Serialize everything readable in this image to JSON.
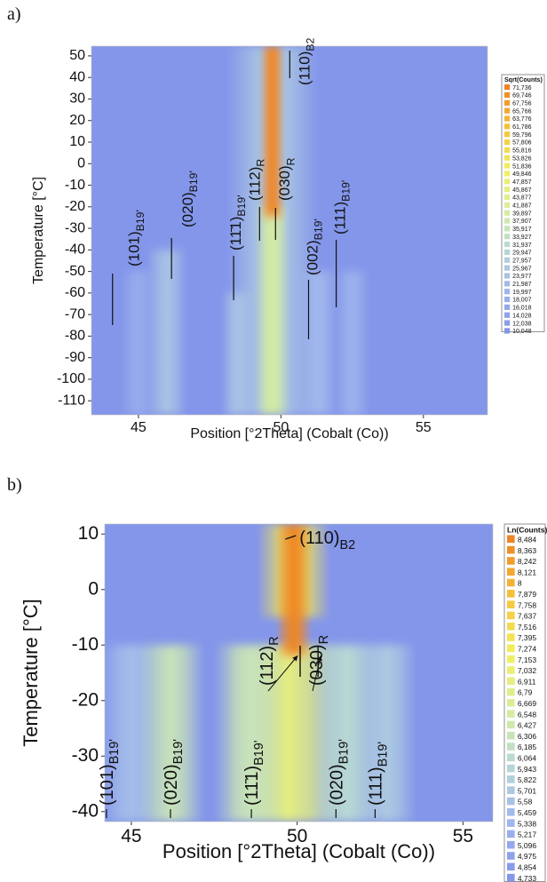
{
  "chart_data": [
    {
      "type": "heatmap",
      "panel_label": "a)",
      "xlabel": "Position [°2Theta] (Cobalt (Co))",
      "ylabel": "Temperature [°C]",
      "xlim": [
        43.35,
        57.25
      ],
      "ylim": [
        -116.5,
        54.5
      ],
      "xticks": [
        45,
        50,
        55
      ],
      "yticks": [
        50,
        40,
        30,
        20,
        10,
        0,
        -10,
        -20,
        -30,
        -40,
        -50,
        -60,
        -70,
        -80,
        -90,
        -100,
        -110
      ],
      "colormap": [
        "#8496ea",
        "#9fb6ee",
        "#b7d8d6",
        "#d8ee9c",
        "#f2ef5e",
        "#f5c23a",
        "#ee8424"
      ],
      "colorbar": {
        "title": "Sqrt(Counts)",
        "ticks": [
          {
            "value": 71.736,
            "label": "71,736"
          },
          {
            "value": 69.746,
            "label": "69,746"
          },
          {
            "value": 67.756,
            "label": "67,756"
          },
          {
            "value": 65.766,
            "label": "65,766"
          },
          {
            "value": 63.776,
            "label": "63,776"
          },
          {
            "value": 61.786,
            "label": "61,786"
          },
          {
            "value": 59.796,
            "label": "59,796"
          },
          {
            "value": 57.806,
            "label": "57,806"
          },
          {
            "value": 55.816,
            "label": "55,816"
          },
          {
            "value": 53.826,
            "label": "53,826"
          },
          {
            "value": 51.836,
            "label": "51,836"
          },
          {
            "value": 49.846,
            "label": "49,846"
          },
          {
            "value": 47.857,
            "label": "47,857"
          },
          {
            "value": 45.867,
            "label": "45,867"
          },
          {
            "value": 43.877,
            "label": "43,877"
          },
          {
            "value": 41.887,
            "label": "41,887"
          },
          {
            "value": 39.897,
            "label": "39,897"
          },
          {
            "value": 37.907,
            "label": "37,907"
          },
          {
            "value": 35.917,
            "label": "35,917"
          },
          {
            "value": 33.927,
            "label": "33,927"
          },
          {
            "value": 31.937,
            "label": "31,937"
          },
          {
            "value": 29.947,
            "label": "29,947"
          },
          {
            "value": 27.957,
            "label": "27,957"
          },
          {
            "value": 25.967,
            "label": "25,967"
          },
          {
            "value": 23.977,
            "label": "23,977"
          },
          {
            "value": 21.987,
            "label": "21,987"
          },
          {
            "value": 19.997,
            "label": "19,997"
          },
          {
            "value": 18.007,
            "label": "18,007"
          },
          {
            "value": 16.018,
            "label": "16,018"
          },
          {
            "value": 14.028,
            "label": "14,028"
          },
          {
            "value": 12.038,
            "label": "12,038"
          },
          {
            "value": 10.048,
            "label": "10,048"
          }
        ]
      },
      "peaks": [
        {
          "position": 49.7,
          "width": 1.6,
          "t_low": -116.5,
          "t_high": 54.5,
          "intensity": 26
        },
        {
          "position": 45.0,
          "width": 0.6,
          "t_low": -116.5,
          "t_high": -50,
          "intensity": 17
        },
        {
          "position": 46.0,
          "width": 0.7,
          "t_low": -116.5,
          "t_high": -40,
          "intensity": 24
        },
        {
          "position": 48.5,
          "width": 0.6,
          "t_low": -116.5,
          "t_high": -60,
          "intensity": 24
        },
        {
          "position": 51.3,
          "width": 0.7,
          "t_low": -116.5,
          "t_high": -50,
          "intensity": 21
        },
        {
          "position": 52.5,
          "width": 0.6,
          "t_low": -116.5,
          "t_high": -50,
          "intensity": 19
        },
        {
          "position": 49.7,
          "width": 0.6,
          "t_low": -116.5,
          "t_high": -20,
          "intensity": 40
        },
        {
          "position": 49.7,
          "width": 0.45,
          "t_low": -25,
          "t_high": 54.5,
          "intensity": 71
        }
      ],
      "annotations": [
        {
          "text": "(101)",
          "sub": "B19'",
          "x": 44.09
        },
        {
          "text": "(020)",
          "sub": "B19'",
          "x": 46.16
        },
        {
          "text": "(11̄1)",
          "sub": "B19'",
          "x": 48.34
        },
        {
          "text": "(112)",
          "sub": "R",
          "x": 49.25
        },
        {
          "text": "(030)",
          "sub": "R",
          "x": 49.81
        },
        {
          "text": "(110)",
          "sub": "B2",
          "x": 50.31
        },
        {
          "text": "(002)",
          "sub": "B19'",
          "x": 50.97
        },
        {
          "text": "(111)",
          "sub": "B19'",
          "x": 51.94
        }
      ]
    },
    {
      "type": "heatmap",
      "panel_label": "b)",
      "xlabel": "Position [°2Theta] (Cobalt (Co))",
      "ylabel": "Temperature [°C]",
      "xlim": [
        44.2,
        55.9
      ],
      "ylim": [
        -41.8,
        11.8
      ],
      "xticks": [
        45,
        50,
        55
      ],
      "yticks": [
        10,
        0,
        -10,
        -20,
        -30,
        -40
      ],
      "colormap": [
        "#8496ea",
        "#9fb6ee",
        "#b7d8d6",
        "#d8ee9c",
        "#f2ef5e",
        "#f5c23a",
        "#ee8424"
      ],
      "colorbar": {
        "title": "Ln(Counts)",
        "ticks": [
          {
            "value": 8.484,
            "label": "8,484"
          },
          {
            "value": 8.363,
            "label": "8,363"
          },
          {
            "value": 8.242,
            "label": "8,242"
          },
          {
            "value": 8.121,
            "label": "8,121"
          },
          8,
          {
            "value": 7.879,
            "label": "7,879"
          },
          {
            "value": 7.758,
            "label": "7,758"
          },
          {
            "value": 7.637,
            "label": "7,637"
          },
          {
            "value": 7.516,
            "label": "7,516"
          },
          {
            "value": 7.395,
            "label": "7,395"
          },
          {
            "value": 7.274,
            "label": "7,274"
          },
          {
            "value": 7.153,
            "label": "7,153"
          },
          {
            "value": 7.032,
            "label": "7,032"
          },
          {
            "value": 6.911,
            "label": "6,911"
          },
          {
            "value": 6.79,
            "label": "6,79"
          },
          {
            "value": 6.669,
            "label": "6,669"
          },
          {
            "value": 6.548,
            "label": "6,548"
          },
          {
            "value": 6.427,
            "label": "6,427"
          },
          {
            "value": 6.306,
            "label": "6,306"
          },
          {
            "value": 6.185,
            "label": "6,185"
          },
          {
            "value": 6.064,
            "label": "6,064"
          },
          {
            "value": 5.943,
            "label": "5,943"
          },
          {
            "value": 5.822,
            "label": "5,822"
          },
          {
            "value": 5.701,
            "label": "5,701"
          },
          {
            "value": 5.58,
            "label": "5,58"
          },
          {
            "value": 5.459,
            "label": "5,459"
          },
          {
            "value": 5.338,
            "label": "5,338"
          },
          {
            "value": 5.217,
            "label": "5,217"
          },
          {
            "value": 5.096,
            "label": "5,096"
          },
          {
            "value": 4.975,
            "label": "4,975"
          },
          {
            "value": 4.854,
            "label": "4,854"
          },
          {
            "value": 4.733,
            "label": "4,733"
          }
        ]
      },
      "peaks": [
        {
          "position": 49.9,
          "width": 1.1,
          "t_low": -5,
          "t_high": 11.8,
          "intensity": 7.4
        },
        {
          "position": 49.7,
          "width": 1.8,
          "t_low": -41.8,
          "t_high": -10,
          "intensity": 6.9
        },
        {
          "position": 45.0,
          "width": 0.9,
          "t_low": -41.8,
          "t_high": -10,
          "intensity": 5.5
        },
        {
          "position": 46.2,
          "width": 1.0,
          "t_low": -41.8,
          "t_high": -10,
          "intensity": 6.3
        },
        {
          "position": 48.6,
          "width": 1.1,
          "t_low": -41.8,
          "t_high": -10,
          "intensity": 6.3
        },
        {
          "position": 51.5,
          "width": 1.1,
          "t_low": -41.8,
          "t_high": -10,
          "intensity": 6.0
        },
        {
          "position": 52.7,
          "width": 0.9,
          "t_low": -41.8,
          "t_high": -10,
          "intensity": 5.7
        },
        {
          "position": 49.9,
          "width": 0.55,
          "t_low": -12,
          "t_high": 11.8,
          "intensity": 8.45
        }
      ],
      "annotations": [
        {
          "text": "(101)",
          "sub": "B19'",
          "x": 44.25
        },
        {
          "text": "(020)",
          "sub": "B19'",
          "x": 46.18
        },
        {
          "text": "(11̄1)",
          "sub": "B19'",
          "x": 48.62
        },
        {
          "text": "(020)",
          "sub": "B19'",
          "x": 51.17
        },
        {
          "text": "(111)",
          "sub": "B19'",
          "x": 52.35
        },
        {
          "text": "(112)",
          "sub": "R",
          "x": 50.09
        },
        {
          "text": "(030)",
          "sub": "R",
          "x": 50.63
        },
        {
          "text": "(110)",
          "sub": "B2",
          "x": 49.75
        }
      ]
    }
  ]
}
